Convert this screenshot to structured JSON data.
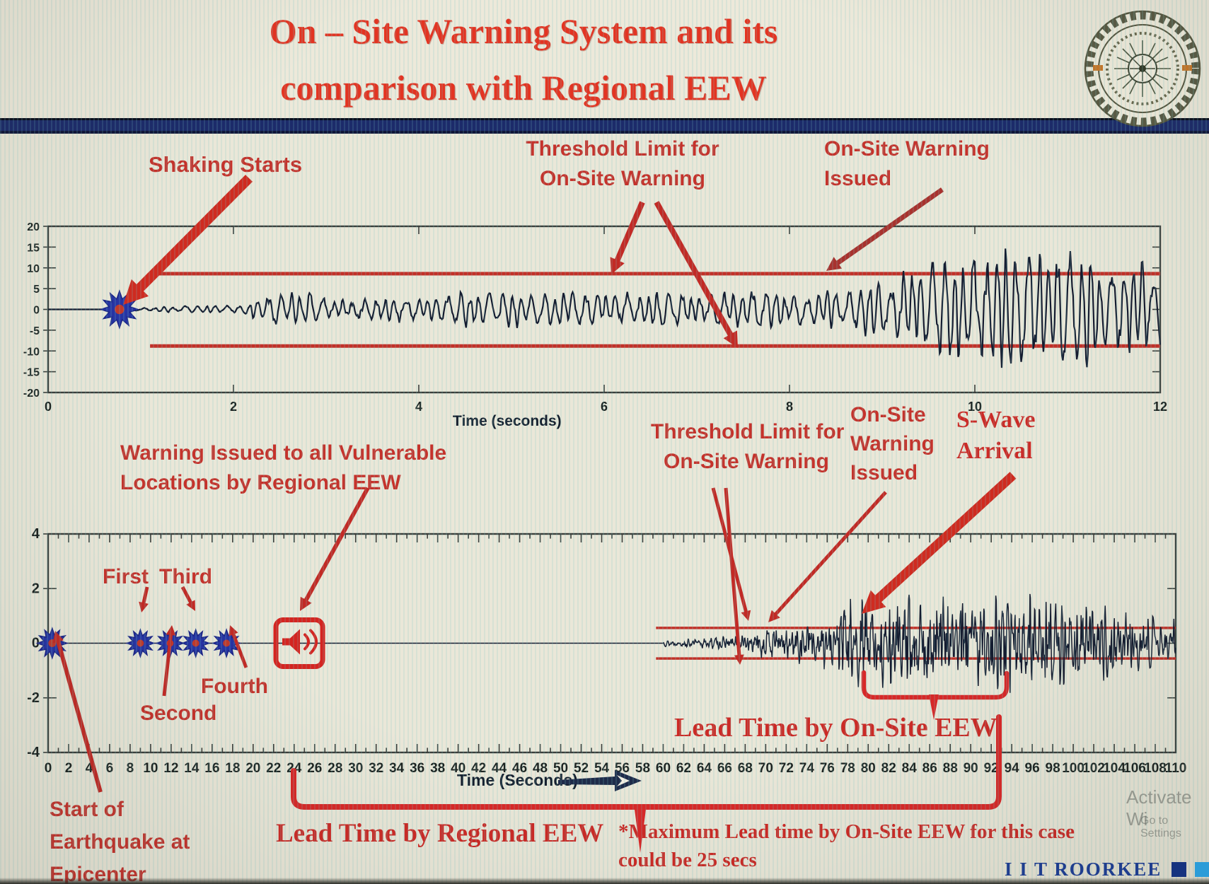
{
  "slide": {
    "title_line1": "On – Site Warning System and its",
    "title_line2": "comparison with Regional EEW",
    "footer_brand": "I I T ROORKEE",
    "watermark_line1": "Activate Wi",
    "watermark_line2": "Go to Settings"
  },
  "colors": {
    "title_red": "#e33422",
    "annotation_red": "#c5322b",
    "arrow_red": "#c22a25",
    "threshold_red": "#c23028",
    "waveform": "#141c30",
    "axis": "#3a3f3c",
    "divider_navy": "#1c2b6a",
    "footer_blue": "#1f3e8e",
    "footer_squares": [
      "#16337f",
      "#2b9cd8",
      "#1c6b40"
    ],
    "star_blue": "#2634a4",
    "star_center_red": "#c0392b",
    "background": "#eae7d8"
  },
  "annotations": {
    "shaking_starts": "Shaking Starts",
    "top_threshold_l1": "Threshold Limit for",
    "top_threshold_l2": "On-Site Warning",
    "top_issued_l1": "On-Site Warning",
    "top_issued_l2": "Issued",
    "top_xlabel": "Time (seconds)",
    "vulnerable_l1": "Warning Issued to all Vulnerable",
    "vulnerable_l2": "Locations by Regional EEW",
    "first": "First",
    "second": "Second",
    "third": "Third",
    "fourth": "Fourth",
    "bot_threshold_l1": "Threshold Limit for",
    "bot_threshold_l2": "On-Site Warning",
    "bot_issued_l1": "On-Site",
    "bot_issued_l2": "Warning",
    "bot_issued_l3": "Issued",
    "swave_l1": "S-Wave",
    "swave_l2": "Arrival",
    "lead_onsite": "Lead Time by On-Site EEW",
    "lead_regional": "Lead Time by Regional EEW",
    "epicenter_l1": "Start of",
    "epicenter_l2": "Earthquake at",
    "epicenter_l3": "Epicenter",
    "note_l1": "*Maximum Lead time by On-Site EEW for this case",
    "note_l2": "could be 25 secs",
    "bot_xlabel": "Time (Seconds)"
  },
  "chart_data": [
    {
      "type": "line",
      "name": "on-site-accelerogram",
      "title": "",
      "xlabel": "Time (seconds)",
      "ylabel": "",
      "xlim": [
        0,
        12
      ],
      "xtick_step": 2,
      "ylim": [
        -20,
        20
      ],
      "ytick_step": 5,
      "grid": false,
      "threshold": {
        "label": "Threshold Limit for On-Site Warning",
        "upper": 8.6,
        "lower": -8.8,
        "x_start": 1.1,
        "x_end": 12
      },
      "event_marker": {
        "t": 0.77,
        "value": 0,
        "label": "Shaking Starts"
      },
      "warning_crossing": {
        "t": 8.4,
        "label": "On-Site Warning Issued"
      },
      "signal": {
        "t_start": 0.77,
        "dt": 0.01,
        "seed": 7,
        "f1": 8.8,
        "f2": 2.1,
        "sine_w": 0.72,
        "noise_w": 0.42,
        "norm": 1.1,
        "envelope": [
          [
            0.77,
            0.2
          ],
          [
            1.1,
            0.6
          ],
          [
            1.6,
            0.9
          ],
          [
            2.1,
            1.1
          ],
          [
            2.45,
            4.8
          ],
          [
            2.8,
            4.4
          ],
          [
            3.2,
            2.6
          ],
          [
            3.6,
            3.4
          ],
          [
            4.0,
            2.9
          ],
          [
            4.5,
            4.6
          ],
          [
            4.9,
            5.4
          ],
          [
            5.3,
            3.8
          ],
          [
            5.7,
            4.8
          ],
          [
            6.1,
            4.0
          ],
          [
            6.6,
            4.8
          ],
          [
            7.1,
            3.8
          ],
          [
            7.6,
            4.8
          ],
          [
            8.1,
            4.2
          ],
          [
            8.5,
            5.4
          ],
          [
            8.9,
            7.5
          ],
          [
            9.2,
            9.5
          ],
          [
            9.5,
            13
          ],
          [
            9.9,
            15
          ],
          [
            10.3,
            18
          ],
          [
            10.7,
            13.5
          ],
          [
            11.1,
            16.5
          ],
          [
            11.4,
            12
          ],
          [
            11.7,
            15
          ],
          [
            12,
            10
          ]
        ]
      }
    },
    {
      "type": "line",
      "name": "regional-vs-onsite-comparison",
      "title": "",
      "xlabel": "Time (Seconds)",
      "ylabel": "",
      "xlim": [
        0,
        110
      ],
      "xtick_step": 2,
      "xminor_step": 1,
      "ylim": [
        -4,
        4
      ],
      "ytick_step": 2,
      "grid": false,
      "threshold": {
        "label": "Threshold Limit for On-Site Warning",
        "upper": 0.56,
        "lower": -0.56,
        "x_start": 59.3,
        "x_end": 110
      },
      "p_wave_markers": {
        "times": [
          0.4,
          9,
          11.9,
          14.4,
          17.4
        ],
        "labels": [
          "Start of Earthquake at Epicenter",
          "First",
          "Second",
          "Third",
          "Fourth"
        ]
      },
      "regional_warning": {
        "t": 24.5,
        "label": "Warning Issued to all Vulnerable Locations by Regional EEW"
      },
      "onsite_warning": {
        "t": 70.5,
        "label": "On-Site Warning Issued"
      },
      "s_wave_arrival": {
        "t": 79.5,
        "label": "S-Wave Arrival"
      },
      "lead_time_regional": {
        "from": 24,
        "to": 93.3,
        "label": "Lead Time by Regional EEW"
      },
      "lead_time_onsite": {
        "from": 79.8,
        "to": 93.8,
        "label": "Lead Time by On-Site EEW"
      },
      "note": "*Maximum Lead time by On-Site EEW for this case could be 25 secs",
      "signal": {
        "t_start": 60,
        "dt": 0.045,
        "seed": 13,
        "f1": 2.6,
        "f2": 0.7,
        "sine_w": 0.3,
        "noise_w": 0.95,
        "norm": 1.2,
        "envelope": [
          [
            60,
            0.12
          ],
          [
            63,
            0.18
          ],
          [
            66,
            0.26
          ],
          [
            68,
            0.38
          ],
          [
            70,
            0.72
          ],
          [
            71.5,
            0.62
          ],
          [
            73,
            0.85
          ],
          [
            75,
            1.1
          ],
          [
            76.5,
            0.9
          ],
          [
            77.5,
            2.0
          ],
          [
            79,
            2.4
          ],
          [
            80.5,
            2.1
          ],
          [
            82,
            1.7
          ],
          [
            84,
            2.25
          ],
          [
            86,
            1.85
          ],
          [
            88,
            2.4
          ],
          [
            90,
            2.0
          ],
          [
            92,
            2.35
          ],
          [
            94,
            1.9
          ],
          [
            96,
            2.2
          ],
          [
            98,
            1.75
          ],
          [
            100,
            2.0
          ],
          [
            102,
            1.55
          ],
          [
            104,
            1.4
          ],
          [
            106,
            1.25
          ],
          [
            108,
            1.1
          ],
          [
            110,
            1.0
          ]
        ]
      }
    }
  ]
}
